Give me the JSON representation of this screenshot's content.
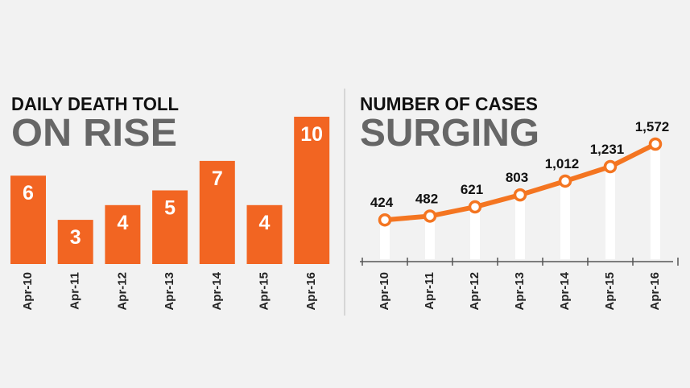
{
  "chart_data": [
    {
      "type": "bar",
      "title": "DAILY DEATH TOLL",
      "subtitle": "ON RISE",
      "categories": [
        "Apr-10",
        "Apr-11",
        "Apr-12",
        "Apr-13",
        "Apr-14",
        "Apr-15",
        "Apr-16"
      ],
      "values": [
        6,
        3,
        4,
        5,
        7,
        4,
        10
      ],
      "color": "#f26522"
    },
    {
      "type": "line",
      "title": "NUMBER OF CASES",
      "subtitle": "SURGING",
      "categories": [
        "Apr-10",
        "Apr-11",
        "Apr-12",
        "Apr-13",
        "Apr-14",
        "Apr-15",
        "Apr-16"
      ],
      "values": [
        424,
        482,
        621,
        803,
        1012,
        1231,
        1572
      ],
      "value_labels": [
        "424",
        "482",
        "621",
        "803",
        "1,012",
        "1,231",
        "1,572"
      ],
      "color": "#f47521"
    }
  ]
}
